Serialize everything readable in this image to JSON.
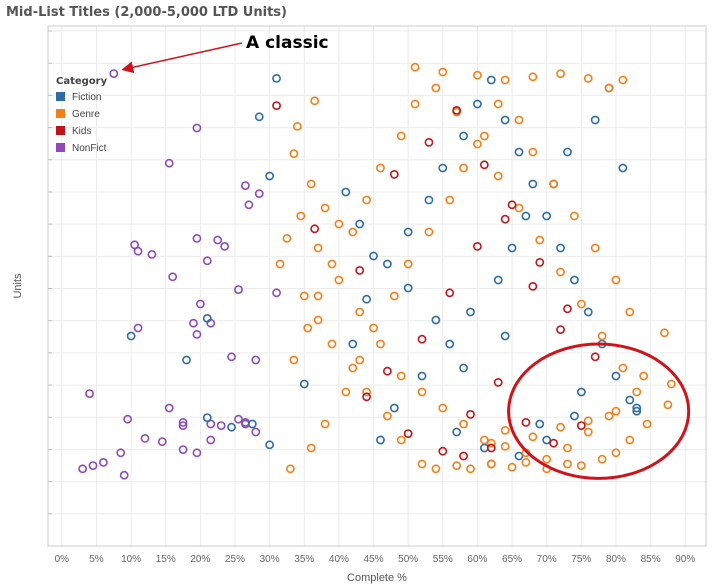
{
  "chart_data": {
    "type": "scatter",
    "title": "Mid-List Titles (2,000-5,000 LTD Units)",
    "xlabel": "Complete %",
    "ylabel": "Units",
    "xlim": [
      -0.02,
      0.93
    ],
    "ylim": [
      2000,
      5000
    ],
    "x_ticks": [
      0,
      0.05,
      0.1,
      0.15,
      0.2,
      0.25,
      0.3,
      0.35,
      0.4,
      0.45,
      0.5,
      0.55,
      0.6,
      0.65,
      0.7,
      0.75,
      0.8,
      0.85,
      0.9
    ],
    "x_tick_labels": [
      "0%",
      "5%",
      "10%",
      "15%",
      "20%",
      "25%",
      "30%",
      "35%",
      "40%",
      "45%",
      "50%",
      "55%",
      "60%",
      "65%",
      "70%",
      "75%",
      "80%",
      "85%",
      "90%"
    ],
    "y_tick_labels_visible": false,
    "grid": true,
    "marker": "hollow-circle",
    "legend": {
      "title": "Category",
      "position": "top-left",
      "entries": [
        {
          "name": "Fiction",
          "color": "#2e6da4"
        },
        {
          "name": "Genre",
          "color": "#f57f17"
        },
        {
          "name": "Kids",
          "color": "#c0141c"
        },
        {
          "name": "NonFict",
          "color": "#8e4ab8"
        }
      ]
    },
    "series": [
      {
        "name": "NonFict",
        "color": "#8e4ab8",
        "x": [
          0.075,
          0.195,
          0.155,
          0.265,
          0.285,
          0.27,
          0.225,
          0.105,
          0.11,
          0.13,
          0.195,
          0.235,
          0.21,
          0.16,
          0.255,
          0.31,
          0.2,
          0.19,
          0.11,
          0.215,
          0.195,
          0.245,
          0.28,
          0.04,
          0.095,
          0.12,
          0.145,
          0.175,
          0.23,
          0.255,
          0.28,
          0.195,
          0.215,
          0.085,
          0.06,
          0.03,
          0.045,
          0.09,
          0.265,
          0.175,
          0.265,
          0.155,
          0.175,
          0.215
        ],
        "y": [
          4890,
          4550,
          4330,
          4190,
          4140,
          4070,
          3850,
          3820,
          3780,
          3760,
          3860,
          3810,
          3720,
          3620,
          3540,
          3520,
          3450,
          3330,
          3300,
          3330,
          3260,
          3120,
          3100,
          2890,
          2730,
          2610,
          2590,
          2710,
          2690,
          2730,
          2650,
          2520,
          2700,
          2520,
          2460,
          2420,
          2440,
          2380,
          2700,
          2690,
          2710,
          2800,
          2540,
          2600
        ]
      },
      {
        "name": "Fiction",
        "color": "#2e6da4",
        "x": [
          0.31,
          0.285,
          0.3,
          0.21,
          0.1,
          0.18,
          0.245,
          0.21,
          0.275,
          0.3,
          0.35,
          0.42,
          0.44,
          0.47,
          0.5,
          0.53,
          0.55,
          0.58,
          0.6,
          0.62,
          0.64,
          0.66,
          0.68,
          0.7,
          0.72,
          0.74,
          0.76,
          0.78,
          0.8,
          0.82,
          0.46,
          0.48,
          0.52,
          0.56,
          0.59,
          0.63,
          0.65,
          0.67,
          0.71,
          0.73,
          0.77,
          0.79,
          0.81,
          0.83,
          0.83,
          0.57,
          0.61,
          0.69,
          0.75,
          0.54,
          0.5,
          0.45,
          0.43,
          0.41,
          0.62,
          0.66,
          0.7,
          0.74,
          0.58,
          0.64
        ],
        "y": [
          4860,
          4620,
          4250,
          3360,
          3250,
          3100,
          2680,
          2740,
          2700,
          2570,
          2950,
          3200,
          3480,
          3700,
          3900,
          4100,
          4300,
          4500,
          4700,
          4850,
          4600,
          4400,
          4200,
          4000,
          3800,
          3600,
          3400,
          3200,
          3000,
          2850,
          2600,
          2800,
          3000,
          3200,
          3400,
          3600,
          3800,
          4000,
          4200,
          4400,
          4600,
          4800,
          4300,
          2780,
          2800,
          2650,
          2550,
          2700,
          2900,
          3350,
          3550,
          3750,
          3950,
          4150,
          2450,
          2500,
          2600,
          2750,
          3050,
          3250
        ]
      },
      {
        "name": "Genre",
        "color": "#f57f17",
        "x": [
          0.51,
          0.55,
          0.6,
          0.64,
          0.68,
          0.72,
          0.76,
          0.79,
          0.81,
          0.365,
          0.34,
          0.335,
          0.36,
          0.38,
          0.4,
          0.325,
          0.315,
          0.35,
          0.37,
          0.39,
          0.42,
          0.44,
          0.47,
          0.49,
          0.52,
          0.54,
          0.57,
          0.59,
          0.62,
          0.65,
          0.67,
          0.7,
          0.73,
          0.75,
          0.78,
          0.8,
          0.82,
          0.845,
          0.875,
          0.87,
          0.84,
          0.88,
          0.82,
          0.8,
          0.77,
          0.74,
          0.71,
          0.68,
          0.66,
          0.63,
          0.61,
          0.58,
          0.56,
          0.53,
          0.5,
          0.48,
          0.45,
          0.43,
          0.41,
          0.38,
          0.36,
          0.33,
          0.335,
          0.355,
          0.37,
          0.39,
          0.42,
          0.44,
          0.46,
          0.49,
          0.51,
          0.54,
          0.57,
          0.6,
          0.63,
          0.66,
          0.69,
          0.72,
          0.75,
          0.78,
          0.81,
          0.83,
          0.79,
          0.76,
          0.73,
          0.7,
          0.67,
          0.64,
          0.61,
          0.58,
          0.55,
          0.52,
          0.49,
          0.46,
          0.43,
          0.4,
          0.37,
          0.345,
          0.62,
          0.68,
          0.72,
          0.76,
          0.8,
          0.64
        ],
        "y": [
          4930,
          4900,
          4880,
          4850,
          4870,
          4890,
          4860,
          4800,
          4850,
          4720,
          4560,
          4390,
          4200,
          4050,
          3950,
          3860,
          3700,
          3500,
          3350,
          3200,
          3050,
          2900,
          2750,
          2600,
          2450,
          2420,
          2440,
          2420,
          2450,
          2430,
          2460,
          2420,
          2450,
          2440,
          2480,
          2520,
          2600,
          2700,
          2820,
          3270,
          3000,
          2950,
          3400,
          3600,
          3800,
          4000,
          4200,
          4400,
          4600,
          4700,
          4500,
          4300,
          4100,
          3900,
          3700,
          3500,
          3300,
          3100,
          2900,
          2700,
          2550,
          2420,
          3100,
          3300,
          3500,
          3700,
          3900,
          4100,
          4300,
          4500,
          4700,
          4800,
          4650,
          4450,
          4250,
          4050,
          3850,
          3650,
          3450,
          3250,
          3050,
          2900,
          2750,
          2650,
          2550,
          2480,
          2520,
          2560,
          2600,
          2700,
          2800,
          2900,
          3000,
          3200,
          3400,
          3600,
          3800,
          4000,
          2580,
          2620,
          2680,
          2720,
          2780,
          2660
        ]
      },
      {
        "name": "Kids",
        "color": "#c0141c",
        "x": [
          0.31,
          0.365,
          0.43,
          0.48,
          0.53,
          0.57,
          0.61,
          0.65,
          0.69,
          0.73,
          0.77,
          0.47,
          0.52,
          0.56,
          0.6,
          0.64,
          0.68,
          0.72,
          0.44,
          0.5,
          0.55,
          0.59,
          0.63,
          0.67,
          0.71,
          0.75,
          0.58,
          0.62
        ],
        "y": [
          4690,
          3920,
          3660,
          4260,
          4460,
          4660,
          4320,
          4070,
          3710,
          3420,
          3120,
          3030,
          3230,
          3520,
          3810,
          3980,
          3560,
          3290,
          2870,
          2640,
          2530,
          2760,
          2960,
          2710,
          2580,
          2690,
          2500,
          2550
        ]
      }
    ],
    "annotations": [
      {
        "type": "arrow-text",
        "text": "A classic",
        "target": [
          0.075,
          4890
        ]
      },
      {
        "type": "circle",
        "center": [
          0.775,
          2780
        ],
        "radius_x": 0.13,
        "radius_y": 420,
        "color": "#d0131b"
      }
    ]
  }
}
